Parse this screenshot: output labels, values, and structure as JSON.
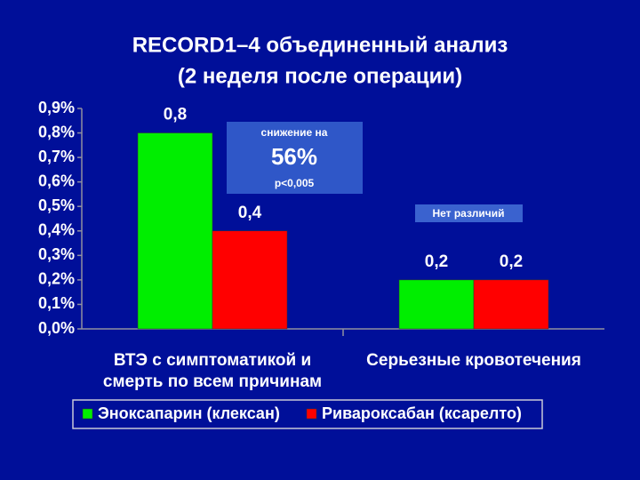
{
  "chart_data": {
    "type": "bar",
    "title": "RECORD1–4 объединенный анализ",
    "subtitle": "(2 неделя после операции)",
    "categories": [
      "ВТЭ с симптоматикой и смерть по всем причинам",
      "Серьезные кровотечения"
    ],
    "series": [
      {
        "name": "Эноксапарин (клексан)",
        "color": "#00ee00",
        "values": [
          0.8,
          0.2
        ],
        "value_labels": [
          "0,8",
          "0,2"
        ]
      },
      {
        "name": "Ривароксабан (ксарелто)",
        "color": "#ff0000",
        "values": [
          0.4,
          0.2
        ],
        "value_labels": [
          "0,4",
          "0,2"
        ]
      }
    ],
    "ylim": [
      0,
      0.9
    ],
    "yticks": [
      {
        "value": 0,
        "label": "0,0%"
      },
      {
        "value": 0.1,
        "label": "0,1%"
      },
      {
        "value": 0.2,
        "label": "0,2%"
      },
      {
        "value": 0.3,
        "label": "0,3%"
      },
      {
        "value": 0.4,
        "label": "0,4%"
      },
      {
        "value": 0.5,
        "label": "0,5%"
      },
      {
        "value": 0.6,
        "label": "0,6%"
      },
      {
        "value": 0.7,
        "label": "0,7%"
      },
      {
        "value": 0.8,
        "label": "0,8%"
      },
      {
        "value": 0.9,
        "label": "0,9%"
      }
    ],
    "legend": "bottom",
    "annotations": [
      "снижение на",
      "56%",
      "p<0,005",
      "Нет различий"
    ]
  }
}
